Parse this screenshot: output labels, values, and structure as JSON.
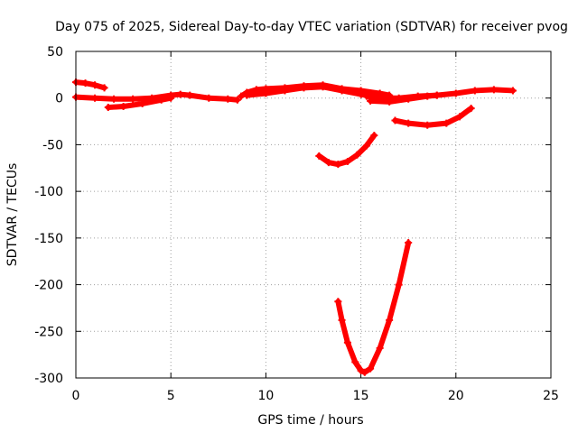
{
  "chart_data": {
    "type": "scatter",
    "title": "Day 075 of 2025, Sidereal Day-to-day VTEC variation (SDTVAR) for receiver pvog",
    "xlabel": "GPS time / hours",
    "ylabel": "SDTVAR / TECUs",
    "xlim": [
      0,
      25
    ],
    "ylim": [
      -300,
      50
    ],
    "xticks": [
      0,
      5,
      10,
      15,
      20,
      25
    ],
    "yticks": [
      -300,
      -250,
      -200,
      -150,
      -100,
      -50,
      0,
      50
    ],
    "grid": true,
    "marker_color": "#ff0000",
    "series": [
      {
        "x": [
          0.0,
          0.5,
          1.0,
          1.5
        ],
        "y": [
          17,
          16,
          14,
          11
        ]
      },
      {
        "x": [
          0.0,
          1.0,
          2.0,
          3.0,
          4.0,
          5.0,
          5.5,
          6.0,
          7.0,
          8.0,
          8.5
        ],
        "y": [
          1,
          0,
          -1,
          -1,
          0,
          3,
          4,
          3,
          0,
          -1,
          -2
        ]
      },
      {
        "x": [
          1.7,
          2.5,
          3.5,
          4.5,
          5.0
        ],
        "y": [
          -10,
          -9,
          -6,
          -2,
          0
        ]
      },
      {
        "x": [
          8.7,
          9.0,
          9.5,
          10.0,
          11.0,
          12.0,
          13.0,
          14.0,
          15.0,
          16.0,
          16.5
        ],
        "y": [
          2,
          6,
          9,
          10,
          11,
          13,
          14,
          10,
          8,
          5,
          3
        ]
      },
      {
        "x": [
          9.0,
          10.0,
          11.0,
          12.0,
          13.0,
          14.0,
          15.0,
          16.0
        ],
        "y": [
          3,
          5,
          8,
          11,
          12,
          8,
          4,
          0
        ]
      },
      {
        "x": [
          15.3,
          16.0,
          17.0,
          18.0,
          19.0,
          20.0,
          21.0,
          22.0,
          23.0
        ],
        "y": [
          2,
          0,
          0,
          2,
          3,
          5,
          8,
          9,
          8
        ]
      },
      {
        "x": [
          15.5,
          16.5,
          17.5,
          18.5,
          19.0
        ],
        "y": [
          -3,
          -4,
          -1,
          2,
          3
        ]
      },
      {
        "x": [
          16.8,
          17.5,
          18.5,
          19.5,
          20.2,
          20.8
        ],
        "y": [
          -24,
          -27,
          -29,
          -27,
          -20,
          -11
        ]
      },
      {
        "x": [
          12.8,
          13.3,
          13.8,
          14.3,
          14.8,
          15.3,
          15.7
        ],
        "y": [
          -62,
          -69,
          -71,
          -68,
          -61,
          -51,
          -40
        ]
      },
      {
        "x": [
          13.8,
          14.0,
          14.3,
          14.7,
          15.0,
          15.2,
          15.5,
          16.0,
          16.5,
          17.0,
          17.5
        ],
        "y": [
          -218,
          -238,
          -262,
          -283,
          -292,
          -294,
          -290,
          -268,
          -238,
          -200,
          -155
        ]
      }
    ]
  }
}
